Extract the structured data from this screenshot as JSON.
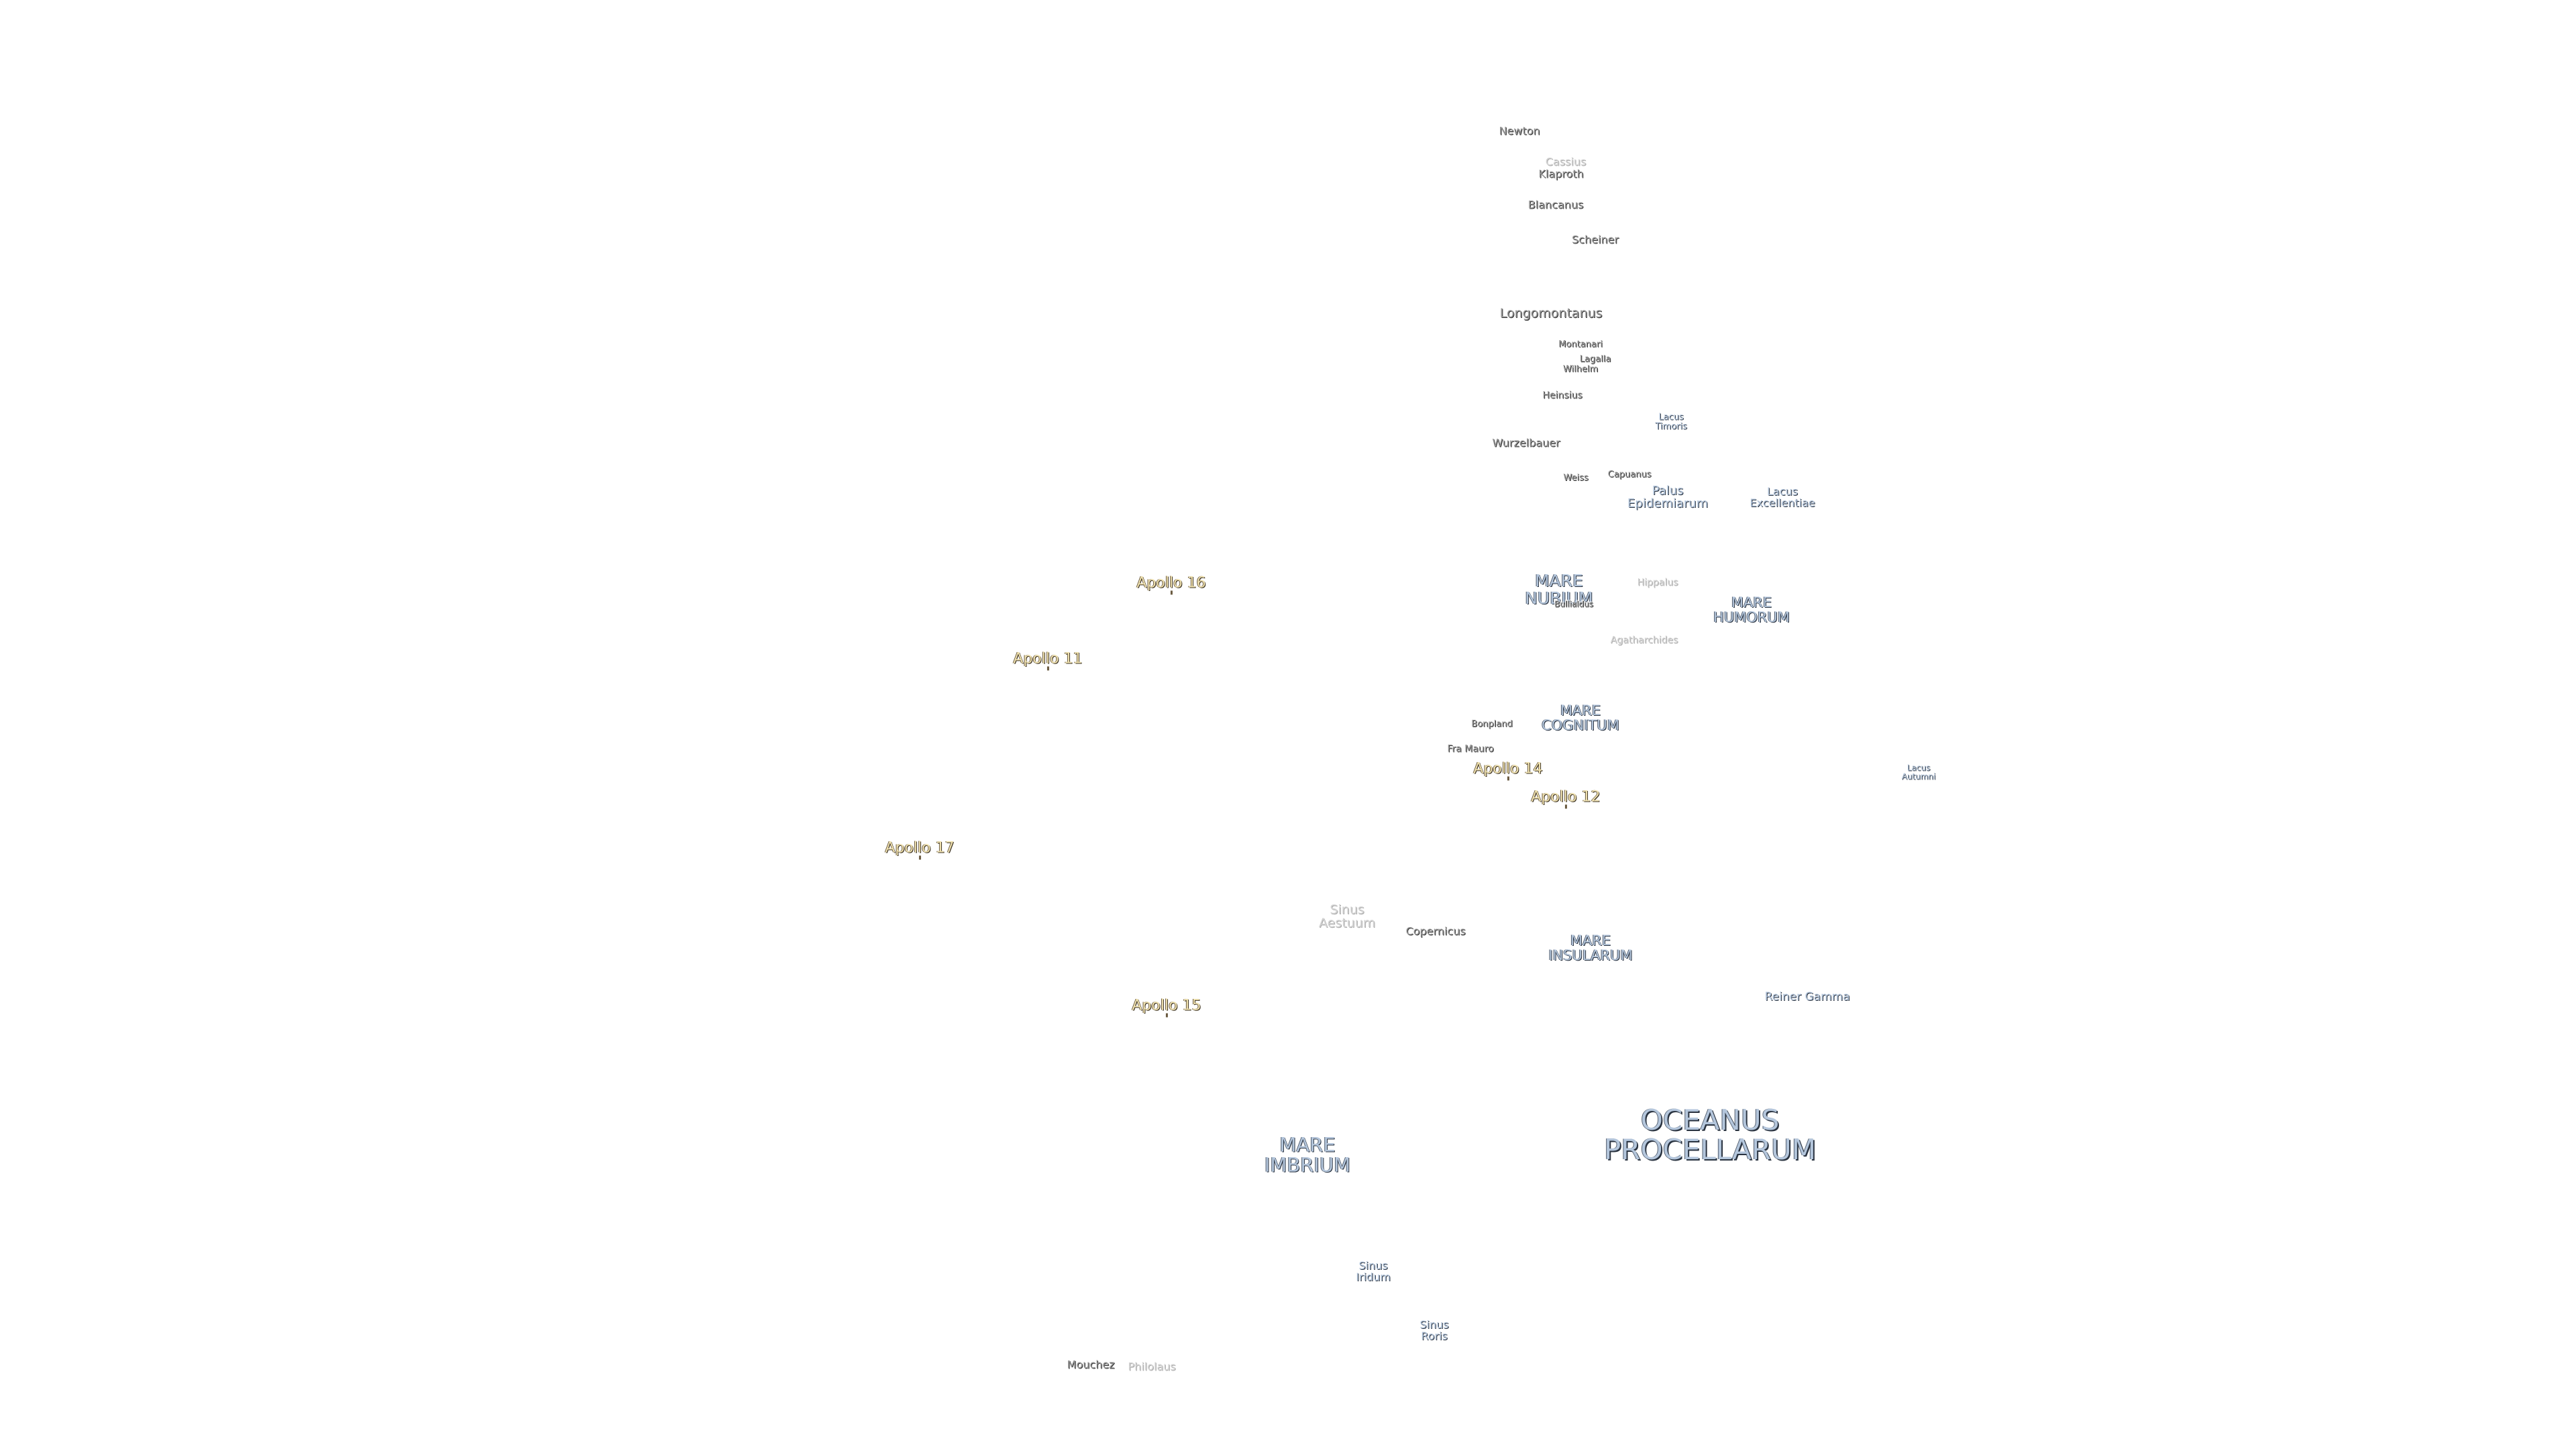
{
  "labels": [
    "Newton",
    "Cassius",
    "Klaproth",
    "Blancanus",
    "Scheiner",
    "Longomontanus",
    "Montanari",
    "Lagalla",
    "Wilhelm",
    "Heinsius",
    "Lacus\nTimoris",
    "Wurzelbauer",
    "Weiss",
    "Capuanus",
    "Palus\nEpidemiarum",
    "Lacus\nExcellentiae",
    "MARE\nNUBIUM",
    "Hippalus",
    "Bullialdus",
    "MARE\nHUMORUM",
    "Agatharchides",
    "MARE\nCOGNITUM",
    "Bonpland",
    "Fra Mauro",
    "Lacus\nAutumni",
    "Sinus\nAestuum",
    "Copernicus",
    "MARE\nINSULARUM",
    "Reiner Gamma",
    "MARE\nIMBRIUM",
    "OCEANUS\nPROCELLARUM",
    "Sinus\nIridum",
    "Sinus\nRoris",
    "Mouchez",
    "Philolaus"
  ],
  "landing_sites": [
    "Apollo 16",
    "Apollo 11",
    "Apollo 14",
    "Apollo 12",
    "Apollo 17",
    "Apollo 15"
  ]
}
